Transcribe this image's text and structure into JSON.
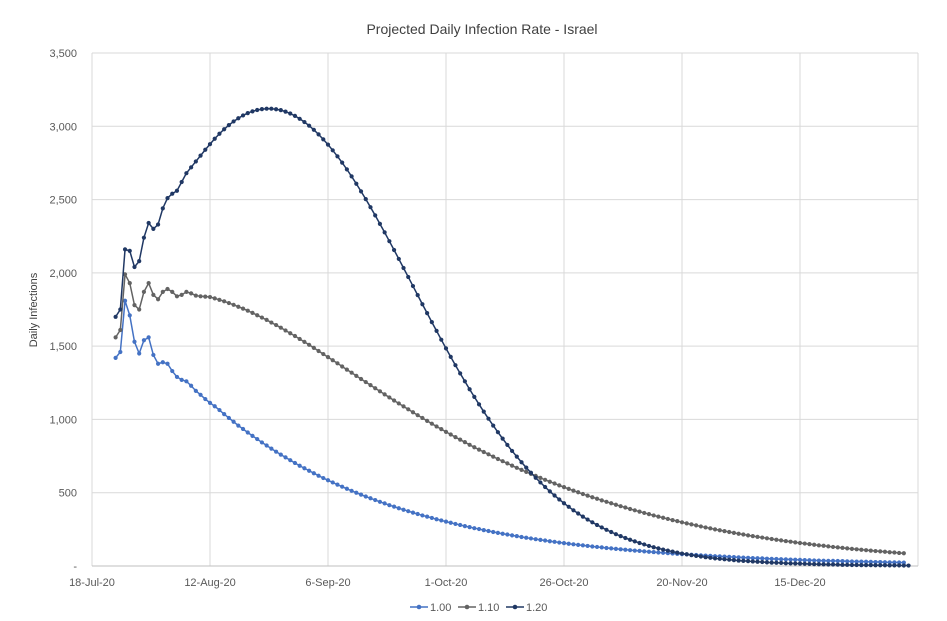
{
  "chart_data": {
    "type": "line",
    "title": "Projected Daily Infection Rate - Israel",
    "xlabel": "",
    "ylabel": "Daily Infections",
    "ylim": [
      0,
      3500
    ],
    "yticks": [
      0,
      500,
      1000,
      1500,
      2000,
      2500,
      3000,
      3500
    ],
    "ytick_labels": [
      "-",
      "500",
      "1,000",
      "1,500",
      "2,000",
      "2,500",
      "3,000",
      "3,500"
    ],
    "xlim": [
      "2020-07-18",
      "2021-01-09"
    ],
    "xtick_labels": [
      "18-Jul-20",
      "12-Aug-20",
      "6-Sep-20",
      "1-Oct-20",
      "26-Oct-20",
      "20-Nov-20",
      "15-Dec-20"
    ],
    "xtick_dates": [
      "2020-07-18",
      "2020-08-12",
      "2020-09-06",
      "2020-10-01",
      "2020-10-26",
      "2020-11-20",
      "2020-12-15"
    ],
    "grid": true,
    "legend_position": "bottom",
    "series_start_date": "2020-07-23",
    "series": [
      {
        "name": "1.00",
        "color": "#4472c4",
        "values": [
          1420,
          1460,
          1810,
          1710,
          1530,
          1450,
          1540,
          1560,
          1440,
          1380,
          1390,
          1380,
          1330,
          1290,
          1270,
          1260,
          1230,
          1195,
          1168,
          1139,
          1113,
          1090,
          1064,
          1036,
          1010,
          984,
          958,
          935,
          911,
          888,
          866,
          843,
          822,
          801,
          780,
          760,
          741,
          722,
          703,
          684,
          667,
          650,
          633,
          616,
          600,
          585,
          570,
          555,
          541,
          527,
          513,
          500,
          487,
          474,
          462,
          450,
          438,
          427,
          415,
          405,
          394,
          384,
          374,
          364,
          355,
          345,
          337,
          328,
          319,
          311,
          303,
          295,
          287,
          280,
          272,
          265,
          258,
          252,
          245,
          239,
          232,
          226,
          220,
          215,
          209,
          204,
          198,
          193,
          188,
          183,
          178,
          174,
          169,
          165,
          160,
          156,
          152,
          148,
          144,
          141,
          137,
          133,
          130,
          127,
          123,
          120,
          117,
          114,
          111,
          108,
          105,
          103,
          100,
          97,
          95,
          92,
          90,
          88,
          85,
          83,
          81,
          79,
          77,
          75,
          73,
          71,
          69,
          67,
          66,
          64,
          62,
          61,
          59,
          57,
          56,
          54,
          53,
          52,
          50,
          49,
          48,
          46,
          45,
          44,
          43,
          42,
          40,
          39,
          38,
          37,
          36,
          35,
          35,
          34,
          33,
          32,
          31,
          30,
          30,
          29,
          28,
          27,
          27,
          26,
          25,
          25,
          24,
          23
        ]
      },
      {
        "name": "1.10",
        "color": "#636363",
        "values": [
          1560,
          1610,
          1990,
          1930,
          1780,
          1750,
          1870,
          1930,
          1850,
          1820,
          1870,
          1890,
          1870,
          1840,
          1850,
          1870,
          1860,
          1845,
          1840,
          1838,
          1835,
          1826,
          1816,
          1806,
          1794,
          1782,
          1769,
          1756,
          1742,
          1727,
          1711,
          1695,
          1679,
          1661,
          1644,
          1626,
          1607,
          1588,
          1569,
          1549,
          1529,
          1509,
          1488,
          1467,
          1446,
          1425,
          1404,
          1383,
          1361,
          1340,
          1319,
          1297,
          1276,
          1255,
          1234,
          1213,
          1192,
          1171,
          1150,
          1129,
          1109,
          1089,
          1069,
          1049,
          1029,
          1010,
          990,
          971,
          952,
          934,
          915,
          897,
          879,
          862,
          845,
          827,
          810,
          794,
          778,
          762,
          746,
          730,
          715,
          700,
          685,
          670,
          656,
          642,
          628,
          615,
          601,
          588,
          575,
          563,
          550,
          538,
          526,
          514,
          503,
          491,
          480,
          469,
          459,
          448,
          438,
          428,
          418,
          408,
          399,
          389,
          380,
          371,
          362,
          354,
          345,
          337,
          329,
          321,
          313,
          306,
          298,
          291,
          284,
          277,
          270,
          263,
          257,
          250,
          244,
          238,
          232,
          226,
          220,
          215,
          209,
          204,
          199,
          194,
          189,
          184,
          179,
          175,
          170,
          166,
          161,
          157,
          153,
          149,
          145,
          141,
          138,
          134,
          130,
          127,
          124,
          120,
          117,
          114,
          111,
          108,
          105,
          102,
          100,
          97,
          94,
          92,
          89,
          87
        ]
      },
      {
        "name": "1.20",
        "color": "#203864",
        "values": [
          1700,
          1750,
          2160,
          2150,
          2040,
          2080,
          2240,
          2340,
          2300,
          2330,
          2440,
          2510,
          2540,
          2560,
          2620,
          2680,
          2720,
          2760,
          2800,
          2840,
          2878,
          2915,
          2949,
          2980,
          3008,
          3033,
          3055,
          3074,
          3090,
          3102,
          3111,
          3117,
          3120,
          3120,
          3116,
          3110,
          3100,
          3087,
          3071,
          3051,
          3029,
          3004,
          2976,
          2945,
          2911,
          2875,
          2836,
          2795,
          2752,
          2706,
          2658,
          2608,
          2556,
          2503,
          2448,
          2392,
          2334,
          2276,
          2216,
          2156,
          2095,
          2033,
          1972,
          1910,
          1848,
          1786,
          1725,
          1664,
          1604,
          1544,
          1485,
          1427,
          1370,
          1314,
          1260,
          1206,
          1154,
          1103,
          1053,
          1005,
          958,
          913,
          869,
          826,
          785,
          746,
          708,
          671,
          636,
          602,
          570,
          539,
          509,
          481,
          454,
          428,
          404,
          380,
          358,
          337,
          317,
          298,
          280,
          263,
          247,
          232,
          217,
          204,
          191,
          179,
          168,
          157,
          147,
          137,
          128,
          120,
          112,
          105,
          98,
          91,
          85,
          80,
          74,
          69,
          65,
          60,
          56,
          52,
          49,
          46,
          43,
          40,
          37,
          35,
          33,
          31,
          29,
          27,
          25,
          23,
          22,
          21,
          19,
          18,
          17,
          16,
          15,
          14,
          13,
          12,
          11,
          10,
          10,
          9,
          8,
          8,
          7,
          7,
          6,
          6,
          6,
          5,
          5,
          5,
          4,
          4,
          4,
          3,
          3
        ]
      }
    ]
  }
}
